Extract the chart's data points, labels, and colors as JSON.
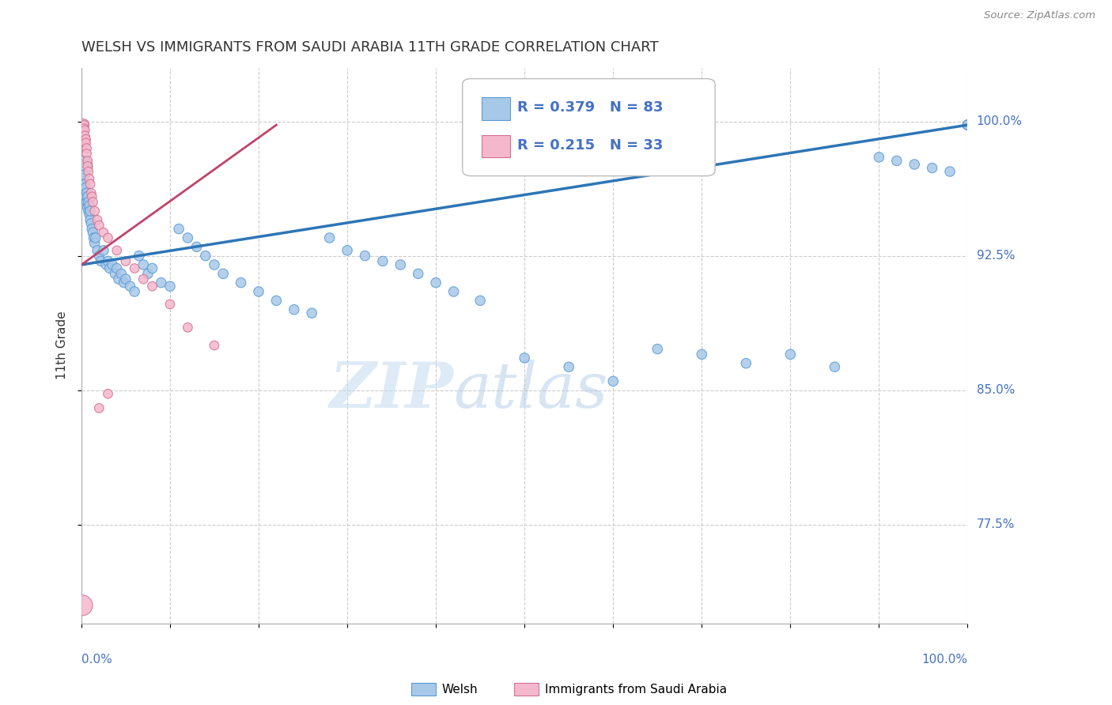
{
  "title": "WELSH VS IMMIGRANTS FROM SAUDI ARABIA 11TH GRADE CORRELATION CHART",
  "source": "Source: ZipAtlas.com",
  "ylabel": "11th Grade",
  "ytick_labels": [
    "77.5%",
    "85.0%",
    "92.5%",
    "100.0%"
  ],
  "ytick_values": [
    0.775,
    0.85,
    0.925,
    1.0
  ],
  "xlim": [
    0.0,
    1.0
  ],
  "ylim": [
    0.72,
    1.03
  ],
  "welsh_color": "#a8c8e8",
  "welsh_edge_color": "#5b9bd5",
  "saudi_color": "#f4b8cc",
  "saudi_edge_color": "#d47090",
  "welsh_line_color": "#2e75b6",
  "saudi_line_color": "#c0446a",
  "legend_R1": "R = 0.379",
  "legend_N1": "N = 83",
  "legend_R2": "R = 0.215",
  "legend_N2": "N = 33",
  "watermark_zip": "ZIP",
  "watermark_atlas": "atlas",
  "welsh_x": [
    0.001,
    0.002,
    0.003,
    0.003,
    0.004,
    0.004,
    0.005,
    0.005,
    0.006,
    0.006,
    0.007,
    0.007,
    0.008,
    0.008,
    0.009,
    0.009,
    0.01,
    0.01,
    0.011,
    0.012,
    0.013,
    0.014,
    0.015,
    0.016,
    0.018,
    0.02,
    0.022,
    0.025,
    0.028,
    0.03,
    0.032,
    0.035,
    0.038,
    0.04,
    0.042,
    0.045,
    0.048,
    0.05,
    0.055,
    0.06,
    0.065,
    0.07,
    0.075,
    0.08,
    0.09,
    0.1,
    0.11,
    0.12,
    0.13,
    0.14,
    0.15,
    0.16,
    0.18,
    0.2,
    0.22,
    0.24,
    0.26,
    0.28,
    0.3,
    0.32,
    0.34,
    0.36,
    0.38,
    0.4,
    0.42,
    0.45,
    0.5,
    0.55,
    0.6,
    0.65,
    0.7,
    0.75,
    0.8,
    0.85,
    0.9,
    0.92,
    0.94,
    0.96,
    0.98,
    1.0,
    1.0,
    1.0,
    1.0
  ],
  "welsh_y": [
    0.975,
    0.968,
    0.965,
    0.97,
    0.96,
    0.965,
    0.958,
    0.963,
    0.955,
    0.96,
    0.952,
    0.958,
    0.95,
    0.955,
    0.948,
    0.953,
    0.945,
    0.95,
    0.943,
    0.94,
    0.938,
    0.935,
    0.932,
    0.935,
    0.928,
    0.925,
    0.922,
    0.928,
    0.92,
    0.922,
    0.918,
    0.92,
    0.915,
    0.918,
    0.912,
    0.915,
    0.91,
    0.912,
    0.908,
    0.905,
    0.925,
    0.92,
    0.915,
    0.918,
    0.91,
    0.908,
    0.94,
    0.935,
    0.93,
    0.925,
    0.92,
    0.915,
    0.91,
    0.905,
    0.9,
    0.895,
    0.893,
    0.935,
    0.928,
    0.925,
    0.922,
    0.92,
    0.915,
    0.91,
    0.905,
    0.9,
    0.868,
    0.863,
    0.855,
    0.873,
    0.87,
    0.865,
    0.87,
    0.863,
    0.98,
    0.978,
    0.976,
    0.974,
    0.972,
    0.998,
    0.998,
    0.998,
    0.998
  ],
  "saudi_x": [
    0.002,
    0.003,
    0.003,
    0.004,
    0.004,
    0.005,
    0.005,
    0.006,
    0.006,
    0.007,
    0.007,
    0.008,
    0.009,
    0.01,
    0.011,
    0.012,
    0.013,
    0.015,
    0.018,
    0.02,
    0.025,
    0.03,
    0.04,
    0.05,
    0.06,
    0.07,
    0.08,
    0.1,
    0.12,
    0.15,
    0.03,
    0.02,
    0.001
  ],
  "saudi_y": [
    0.998,
    0.998,
    0.996,
    0.995,
    0.992,
    0.99,
    0.988,
    0.985,
    0.982,
    0.978,
    0.975,
    0.972,
    0.968,
    0.965,
    0.96,
    0.958,
    0.955,
    0.95,
    0.945,
    0.942,
    0.938,
    0.935,
    0.928,
    0.922,
    0.918,
    0.912,
    0.908,
    0.898,
    0.885,
    0.875,
    0.848,
    0.84,
    0.73
  ]
}
